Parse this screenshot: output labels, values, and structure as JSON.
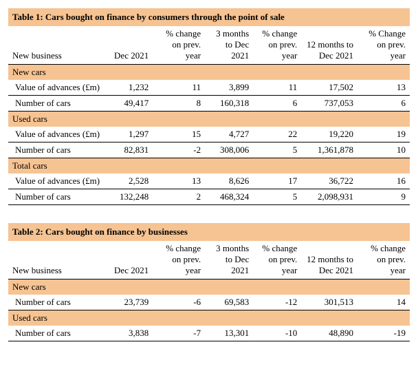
{
  "colors": {
    "section_bg": "#f6c392",
    "border": "#000000",
    "background": "#ffffff",
    "text": "#000000"
  },
  "typography": {
    "font_family": "Georgia, Times New Roman, serif",
    "body_fontsize": 13,
    "title_weight": "bold"
  },
  "columns": [
    {
      "key": "label",
      "header": "New business",
      "width_pct": 24,
      "align": "left"
    },
    {
      "key": "dec21",
      "header": "Dec 2021",
      "width_pct": 12,
      "align": "right"
    },
    {
      "key": "pct1",
      "header": "% change on prev. year",
      "width_pct": 13,
      "align": "right"
    },
    {
      "key": "m3",
      "header": "3 months to Dec 2021",
      "width_pct": 12,
      "align": "right"
    },
    {
      "key": "pct2",
      "header": "% change on prev. year",
      "width_pct": 12,
      "align": "right"
    },
    {
      "key": "m12",
      "header": "12 months to Dec 2021",
      "width_pct": 14,
      "align": "right"
    },
    {
      "key": "pct3",
      "header": "% Change on prev. year",
      "width_pct": 13,
      "align": "right"
    }
  ],
  "tables": [
    {
      "title": "Table 1: Cars bought on finance by consumers through the point of sale",
      "sections": [
        {
          "name": "New cars",
          "rows": [
            {
              "label": "Value of advances (£m)",
              "dec21": "1,232",
              "pct1": "11",
              "m3": "3,899",
              "pct2": "11",
              "m12": "17,502",
              "pct3": "13"
            },
            {
              "label": "Number of cars",
              "dec21": "49,417",
              "pct1": "8",
              "m3": "160,318",
              "pct2": "6",
              "m12": "737,053",
              "pct3": "6"
            }
          ]
        },
        {
          "name": "Used cars",
          "rows": [
            {
              "label": "Value of advances (£m)",
              "dec21": "1,297",
              "pct1": "15",
              "m3": "4,727",
              "pct2": "22",
              "m12": "19,220",
              "pct3": "19"
            },
            {
              "label": "Number of cars",
              "dec21": "82,831",
              "pct1": "-2",
              "m3": "308,006",
              "pct2": "5",
              "m12": "1,361,878",
              "pct3": "10"
            }
          ]
        },
        {
          "name": "Total cars",
          "rows": [
            {
              "label": "Value of advances (£m)",
              "dec21": "2,528",
              "pct1": "13",
              "m3": "8,626",
              "pct2": "17",
              "m12": "36,722",
              "pct3": "16"
            },
            {
              "label": "Number of cars",
              "dec21": "132,248",
              "pct1": "2",
              "m3": "468,324",
              "pct2": "5",
              "m12": "2,098,931",
              "pct3": "9"
            }
          ]
        }
      ]
    },
    {
      "title": "Table 2: Cars bought on finance by businesses",
      "pct3_header": "% change on prev. year",
      "sections": [
        {
          "name": "New cars",
          "rows": [
            {
              "label": "Number of cars",
              "dec21": "23,739",
              "pct1": "-6",
              "m3": "69,583",
              "pct2": "-12",
              "m12": "301,513",
              "pct3": "14"
            }
          ]
        },
        {
          "name": "Used cars",
          "rows": [
            {
              "label": "Number of cars",
              "dec21": "3,838",
              "pct1": "-7",
              "m3": "13,301",
              "pct2": "-10",
              "m12": "48,890",
              "pct3": "-19"
            }
          ]
        }
      ]
    }
  ]
}
